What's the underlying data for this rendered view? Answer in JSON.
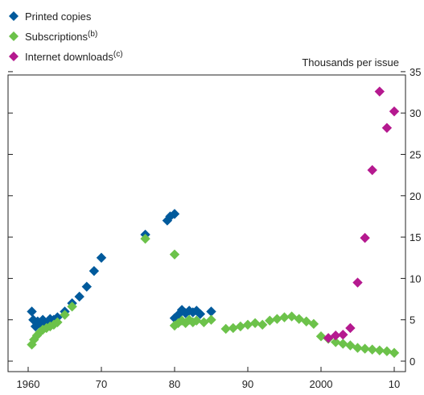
{
  "chart_data": {
    "type": "scatter",
    "title": "",
    "xlabel": "",
    "ylabel": "Thousands per issue",
    "xlim": [
      1957,
      2012
    ],
    "ylim": [
      -1,
      35
    ],
    "x_ticks": [
      1960,
      1970,
      1980,
      1990,
      2000,
      2010
    ],
    "x_tick_labels": [
      "1960",
      "70",
      "80",
      "90",
      "2000",
      "10"
    ],
    "y_ticks": [
      0,
      5,
      10,
      15,
      20,
      25,
      30,
      35
    ],
    "y_tick_labels": [
      "0",
      "5",
      "10",
      "15",
      "20",
      "25",
      "30",
      "35"
    ],
    "y_axis_side": "right",
    "grid": false,
    "legend_position": "top-left",
    "series": [
      {
        "name": "Printed copies",
        "note": "",
        "color": "#005a9c",
        "marker": "diamond",
        "points": [
          [
            1960.5,
            6.0
          ],
          [
            1960.7,
            5.0
          ],
          [
            1961.0,
            4.2
          ],
          [
            1961.3,
            4.8
          ],
          [
            1961.7,
            4.4
          ],
          [
            1962.0,
            5.0
          ],
          [
            1962.5,
            4.6
          ],
          [
            1963.0,
            5.1
          ],
          [
            1963.5,
            5.0
          ],
          [
            1964.0,
            5.3
          ],
          [
            1965.0,
            6.0
          ],
          [
            1966.0,
            7.0
          ],
          [
            1967.0,
            7.8
          ],
          [
            1968.0,
            9.0
          ],
          [
            1969.0,
            10.9
          ],
          [
            1970.0,
            12.5
          ],
          [
            1976.0,
            15.3
          ],
          [
            1979.0,
            17.0
          ],
          [
            1979.4,
            17.5
          ],
          [
            1980.0,
            17.8
          ],
          [
            1980.0,
            5.2
          ],
          [
            1980.5,
            5.6
          ],
          [
            1981.0,
            6.2
          ],
          [
            1981.5,
            5.8
          ],
          [
            1982.0,
            6.1
          ],
          [
            1982.5,
            5.9
          ],
          [
            1983.0,
            6.1
          ],
          [
            1983.5,
            5.7
          ],
          [
            1985.0,
            6.0
          ]
        ]
      },
      {
        "name": "Subscriptions",
        "note": "(b)",
        "color": "#6cc24a",
        "marker": "diamond",
        "points": [
          [
            1960.5,
            2.0
          ],
          [
            1960.8,
            2.6
          ],
          [
            1961.2,
            3.1
          ],
          [
            1961.6,
            3.5
          ],
          [
            1962.0,
            3.8
          ],
          [
            1962.5,
            4.0
          ],
          [
            1963.0,
            4.2
          ],
          [
            1963.5,
            4.4
          ],
          [
            1964.0,
            4.7
          ],
          [
            1965.0,
            5.6
          ],
          [
            1966.0,
            6.6
          ],
          [
            1976.0,
            14.8
          ],
          [
            1980.0,
            12.9
          ],
          [
            1980.0,
            4.3
          ],
          [
            1980.5,
            4.6
          ],
          [
            1981.0,
            4.9
          ],
          [
            1981.5,
            4.6
          ],
          [
            1982.0,
            5.0
          ],
          [
            1982.5,
            4.7
          ],
          [
            1983.0,
            4.9
          ],
          [
            1984.0,
            4.7
          ],
          [
            1985.0,
            5.0
          ],
          [
            1987.0,
            3.9
          ],
          [
            1988.0,
            4.0
          ],
          [
            1989.0,
            4.2
          ],
          [
            1990.0,
            4.4
          ],
          [
            1991.0,
            4.6
          ],
          [
            1992.0,
            4.4
          ],
          [
            1993.0,
            4.9
          ],
          [
            1994.0,
            5.1
          ],
          [
            1995.0,
            5.3
          ],
          [
            1996.0,
            5.4
          ],
          [
            1997.0,
            5.1
          ],
          [
            1998.0,
            4.8
          ],
          [
            1999.0,
            4.5
          ],
          [
            2000.0,
            3.0
          ],
          [
            2001.0,
            2.7
          ],
          [
            2002.0,
            2.3
          ],
          [
            2003.0,
            2.1
          ],
          [
            2004.0,
            1.9
          ],
          [
            2005.0,
            1.6
          ],
          [
            2006.0,
            1.5
          ],
          [
            2007.0,
            1.4
          ],
          [
            2008.0,
            1.3
          ],
          [
            2009.0,
            1.2
          ],
          [
            2010.0,
            1.0
          ]
        ]
      },
      {
        "name": "Internet downloads",
        "note": "(c)",
        "color": "#b5198f",
        "marker": "diamond",
        "points": [
          [
            2001.0,
            2.8
          ],
          [
            2002.0,
            3.1
          ],
          [
            2003.0,
            3.2
          ],
          [
            2004.0,
            4.0
          ],
          [
            2005.0,
            9.5
          ],
          [
            2006.0,
            14.9
          ],
          [
            2007.0,
            23.1
          ],
          [
            2008.0,
            32.6
          ],
          [
            2009.0,
            28.2
          ],
          [
            2010.0,
            30.2
          ]
        ]
      }
    ]
  }
}
